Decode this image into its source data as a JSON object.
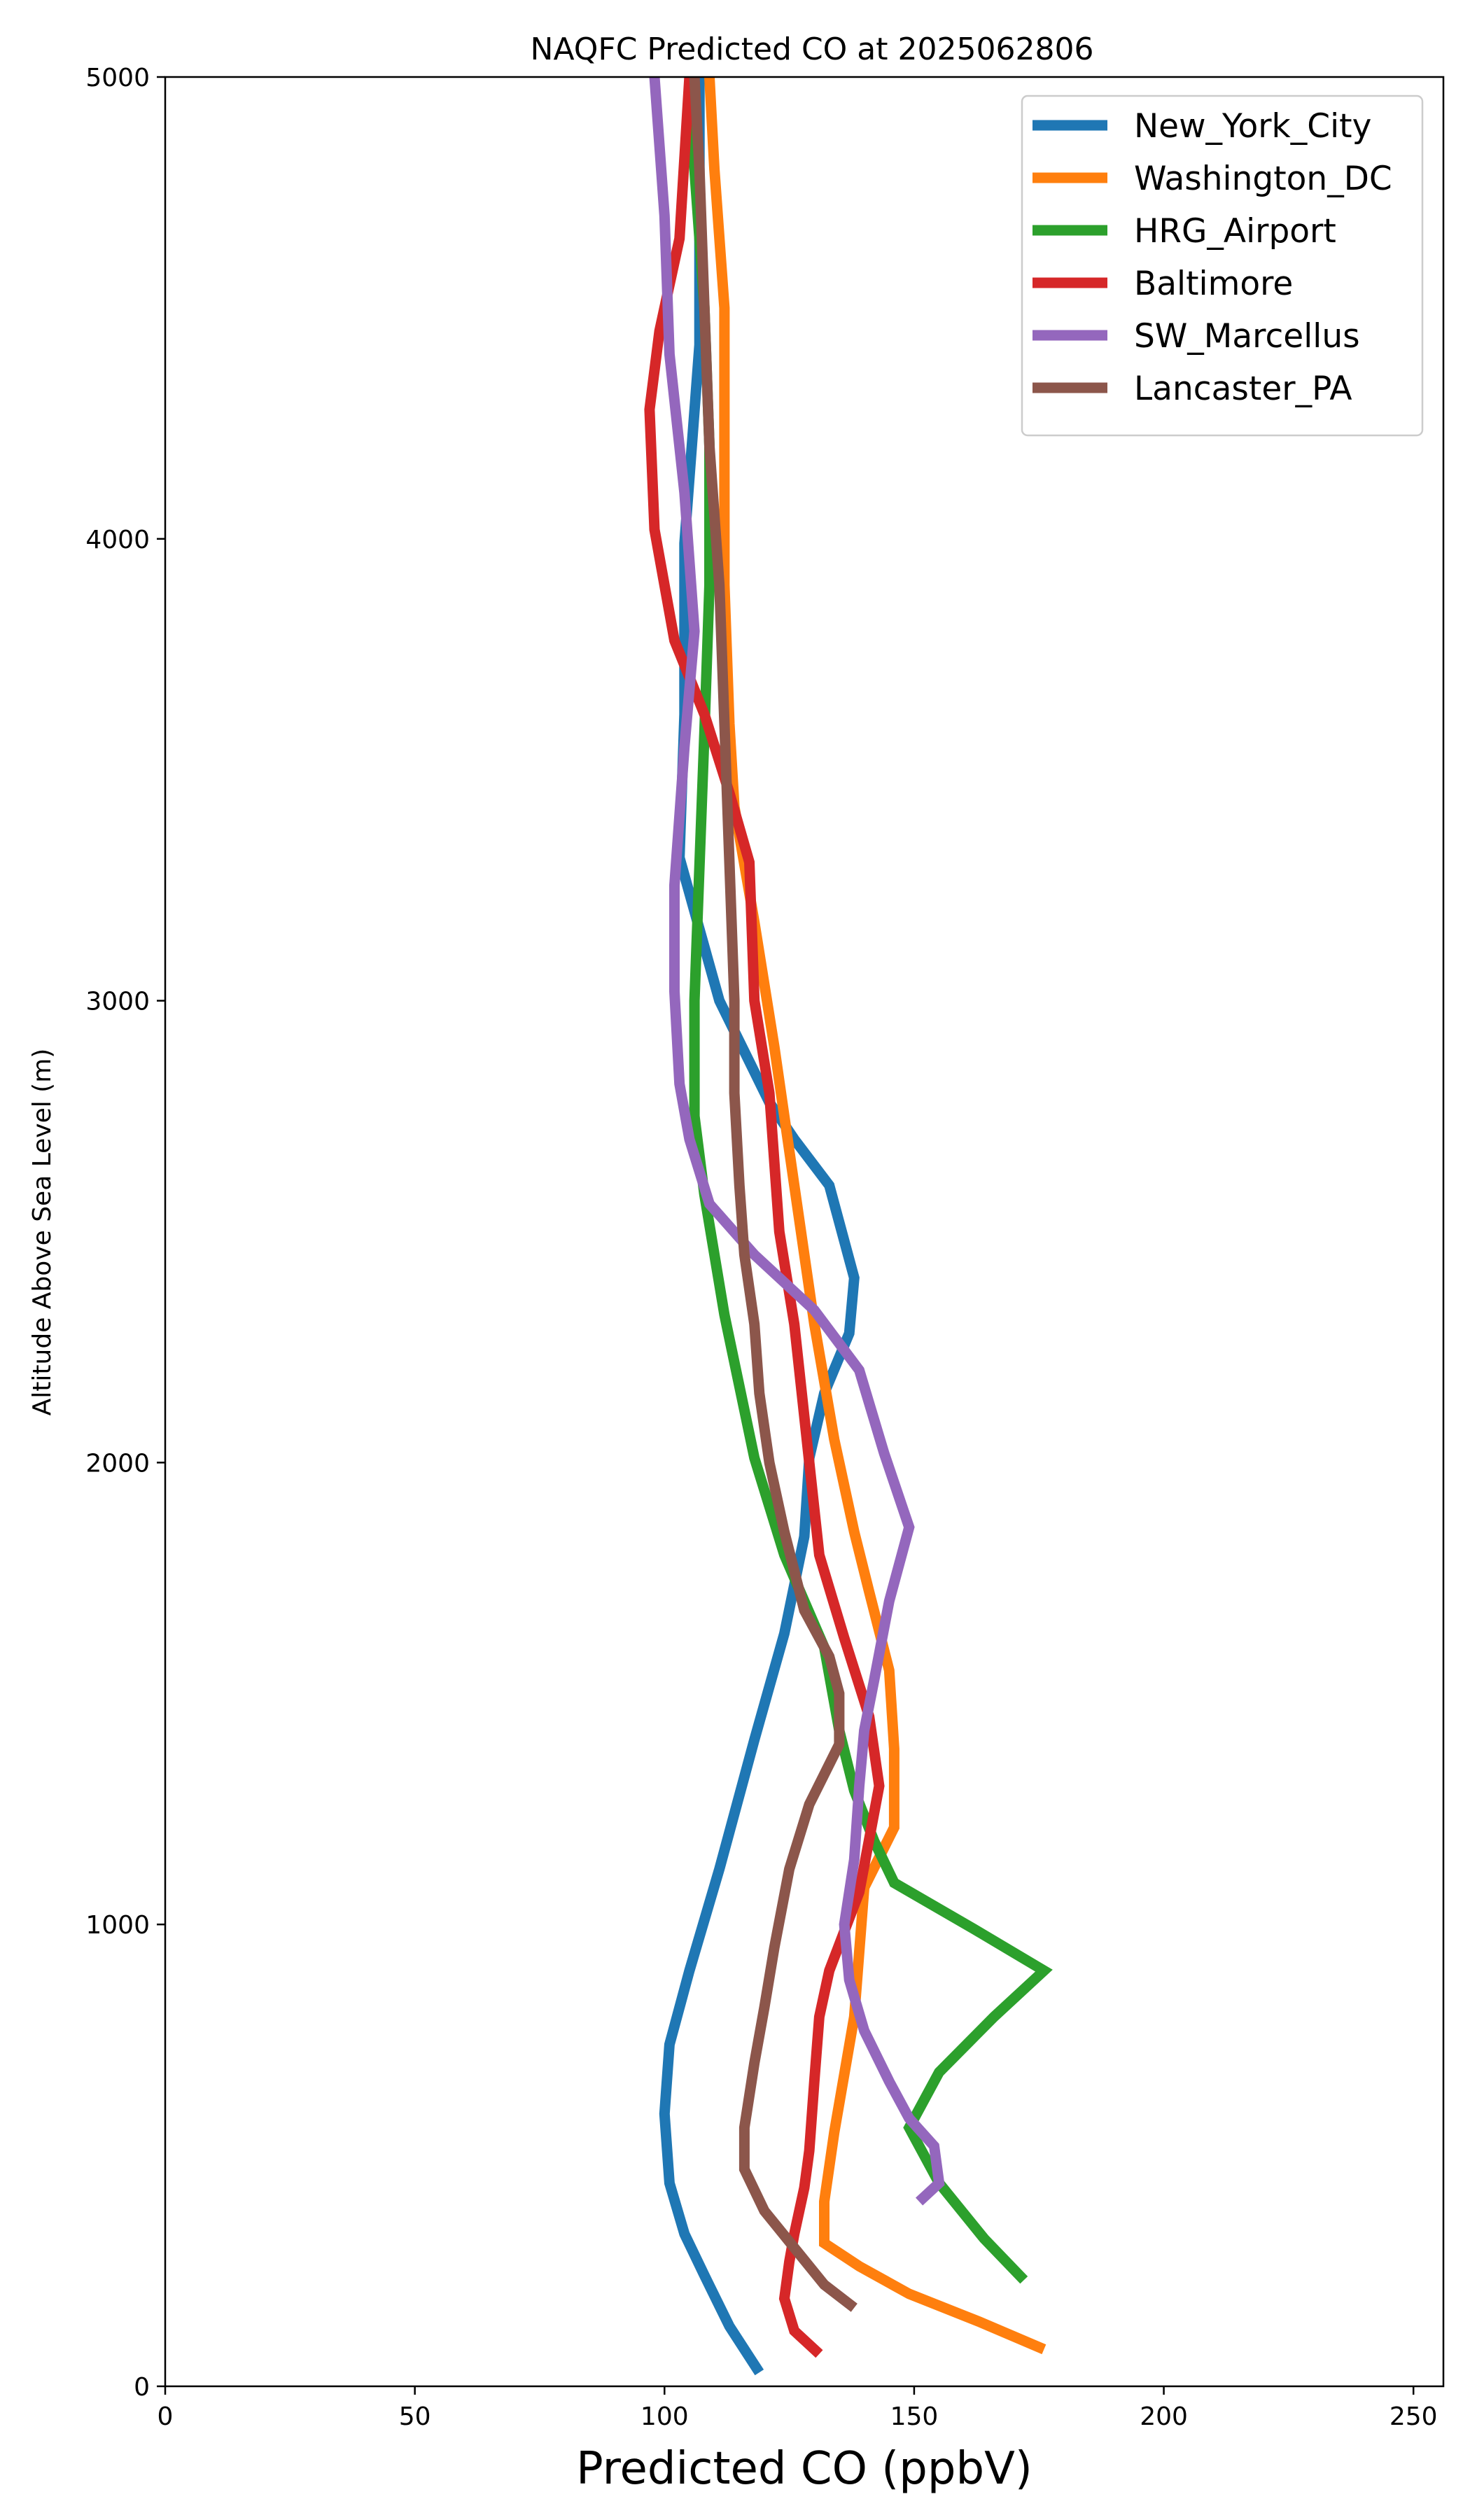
{
  "chart_data": {
    "type": "line",
    "title": "NAQFC Predicted CO at 2025062806",
    "xlabel": "Predicted CO (ppbV)",
    "ylabel": "Altitude Above Sea Level (m)",
    "xlim": [
      0,
      256
    ],
    "ylim": [
      0,
      5000
    ],
    "xticks": [
      "0",
      "50",
      "100",
      "150",
      "200",
      "250"
    ],
    "yticks": [
      "0",
      "1000",
      "2000",
      "3000",
      "4000",
      "5000"
    ],
    "grid": false,
    "legend_position": "top-right",
    "series": [
      {
        "name": "New_York_City",
        "color": "#1f77b4",
        "points": [
          [
            119,
            30
          ],
          [
            113,
            130
          ],
          [
            108,
            240
          ],
          [
            104,
            330
          ],
          [
            101,
            440
          ],
          [
            100,
            590
          ],
          [
            101,
            740
          ],
          [
            105,
            900
          ],
          [
            111,
            1120
          ],
          [
            113,
            1200
          ],
          [
            118,
            1400
          ],
          [
            124,
            1630
          ],
          [
            128,
            1840
          ],
          [
            129,
            2010
          ],
          [
            132,
            2150
          ],
          [
            137,
            2280
          ],
          [
            138,
            2400
          ],
          [
            133,
            2600
          ],
          [
            126,
            2700
          ],
          [
            121,
            2780
          ],
          [
            111,
            3000
          ],
          [
            103,
            3310
          ],
          [
            104,
            3620
          ],
          [
            104,
            3990
          ],
          [
            107,
            4420
          ],
          [
            107,
            5000
          ]
        ]
      },
      {
        "name": "Washington_DC",
        "color": "#ff7f0e",
        "points": [
          [
            176,
            80
          ],
          [
            163,
            140
          ],
          [
            149,
            200
          ],
          [
            139,
            260
          ],
          [
            132,
            310
          ],
          [
            132,
            400
          ],
          [
            134,
            550
          ],
          [
            138,
            800
          ],
          [
            140,
            1080
          ],
          [
            146,
            1210
          ],
          [
            146,
            1380
          ],
          [
            145,
            1550
          ],
          [
            141,
            1720
          ],
          [
            138,
            1850
          ],
          [
            134,
            2050
          ],
          [
            130,
            2300
          ],
          [
            126,
            2600
          ],
          [
            122,
            2900
          ],
          [
            118,
            3170
          ],
          [
            114,
            3420
          ],
          [
            113,
            3600
          ],
          [
            112,
            3900
          ],
          [
            112,
            4200
          ],
          [
            112,
            4500
          ],
          [
            110,
            4800
          ],
          [
            109,
            5000
          ]
        ]
      },
      {
        "name": "HRG_Airport",
        "color": "#2ca02c",
        "points": [
          [
            172,
            230
          ],
          [
            164,
            320
          ],
          [
            155,
            440
          ],
          [
            149,
            560
          ],
          [
            155,
            680
          ],
          [
            166,
            800
          ],
          [
            176,
            900
          ],
          [
            162,
            990
          ],
          [
            146,
            1090
          ],
          [
            142,
            1180
          ],
          [
            138,
            1290
          ],
          [
            135,
            1420
          ],
          [
            132,
            1600
          ],
          [
            124,
            1800
          ],
          [
            118,
            2010
          ],
          [
            112,
            2320
          ],
          [
            108,
            2580
          ],
          [
            106,
            2750
          ],
          [
            106,
            3000
          ],
          [
            107,
            3290
          ],
          [
            108,
            3580
          ],
          [
            109,
            3900
          ],
          [
            109,
            4200
          ],
          [
            108,
            4500
          ],
          [
            106,
            4800
          ],
          [
            105,
            5000
          ]
        ]
      },
      {
        "name": "Baltimore",
        "color": "#d62728",
        "points": [
          [
            131,
            70
          ],
          [
            126,
            120
          ],
          [
            124,
            190
          ],
          [
            125,
            270
          ],
          [
            126,
            330
          ],
          [
            128,
            430
          ],
          [
            129,
            510
          ],
          [
            130,
            660
          ],
          [
            131,
            800
          ],
          [
            133,
            900
          ],
          [
            139,
            1070
          ],
          [
            143,
            1300
          ],
          [
            141,
            1450
          ],
          [
            136,
            1620
          ],
          [
            131,
            1800
          ],
          [
            129,
            2000
          ],
          [
            126,
            2300
          ],
          [
            123,
            2500
          ],
          [
            121,
            2800
          ],
          [
            118,
            3000
          ],
          [
            117,
            3300
          ],
          [
            113,
            3450
          ],
          [
            108,
            3620
          ],
          [
            102,
            3780
          ],
          [
            98,
            4020
          ],
          [
            97,
            4280
          ],
          [
            99,
            4450
          ],
          [
            103,
            4650
          ],
          [
            105,
            5000
          ]
        ]
      },
      {
        "name": "SW_Marcellus",
        "color": "#9467bd",
        "points": [
          [
            151,
            400
          ],
          [
            155,
            440
          ],
          [
            154,
            520
          ],
          [
            149,
            580
          ],
          [
            145,
            660
          ],
          [
            140,
            770
          ],
          [
            137,
            880
          ],
          [
            136,
            1000
          ],
          [
            138,
            1140
          ],
          [
            139,
            1300
          ],
          [
            140,
            1420
          ],
          [
            142,
            1530
          ],
          [
            145,
            1700
          ],
          [
            149,
            1860
          ],
          [
            144,
            2020
          ],
          [
            139,
            2200
          ],
          [
            130,
            2330
          ],
          [
            118,
            2450
          ],
          [
            109,
            2560
          ],
          [
            105,
            2700
          ],
          [
            103,
            2820
          ],
          [
            102,
            3020
          ],
          [
            102,
            3250
          ],
          [
            104,
            3550
          ],
          [
            106,
            3800
          ],
          [
            104,
            4100
          ],
          [
            101,
            4400
          ],
          [
            100,
            4700
          ],
          [
            98,
            5000
          ]
        ]
      },
      {
        "name": "Lancaster_PA",
        "color": "#8c564b",
        "points": [
          [
            138,
            170
          ],
          [
            132,
            220
          ],
          [
            126,
            300
          ],
          [
            120,
            380
          ],
          [
            116,
            470
          ],
          [
            116,
            560
          ],
          [
            118,
            700
          ],
          [
            120,
            820
          ],
          [
            122,
            950
          ],
          [
            125,
            1120
          ],
          [
            129,
            1260
          ],
          [
            135,
            1390
          ],
          [
            135,
            1500
          ],
          [
            133,
            1580
          ],
          [
            128,
            1680
          ],
          [
            124,
            1850
          ],
          [
            121,
            2000
          ],
          [
            119,
            2150
          ],
          [
            118,
            2300
          ],
          [
            116,
            2450
          ],
          [
            115,
            2600
          ],
          [
            114,
            2800
          ],
          [
            114,
            3000
          ],
          [
            113,
            3300
          ],
          [
            112,
            3600
          ],
          [
            111,
            3900
          ],
          [
            109,
            4200
          ],
          [
            108,
            4500
          ],
          [
            107,
            4800
          ],
          [
            106,
            5000
          ]
        ]
      }
    ]
  }
}
